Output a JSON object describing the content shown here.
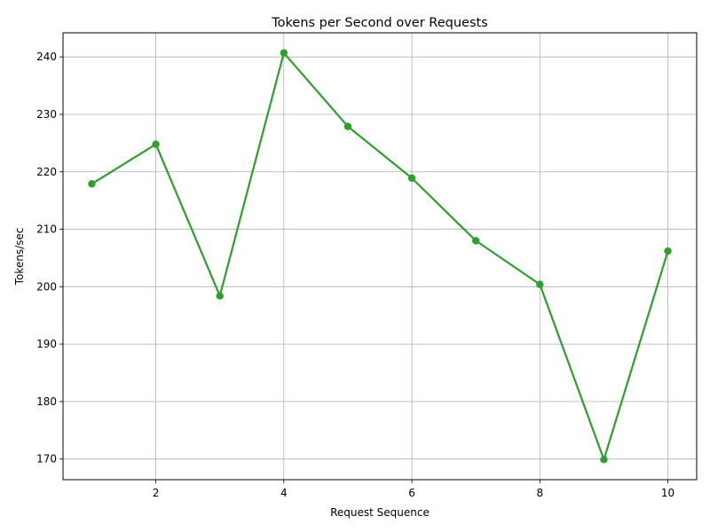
{
  "chart_data": {
    "type": "line",
    "title": "Tokens per Second over Requests",
    "xlabel": "Request Sequence",
    "ylabel": "Tokens/sec",
    "x": [
      1,
      2,
      3,
      4,
      5,
      6,
      7,
      8,
      9,
      10
    ],
    "series": [
      {
        "values": [
          217.9,
          224.8,
          198.4,
          240.7,
          227.9,
          218.9,
          208.0,
          200.4,
          169.9,
          206.2
        ],
        "color": "#2ca02c",
        "marker": "circle"
      }
    ],
    "xlim": [
      0.55,
      10.45
    ],
    "ylim": [
      166.4,
      244.2
    ],
    "xticks": [
      2,
      4,
      6,
      8,
      10
    ],
    "yticks": [
      170,
      180,
      190,
      200,
      210,
      220,
      230,
      240
    ],
    "grid": true,
    "legend": false
  }
}
